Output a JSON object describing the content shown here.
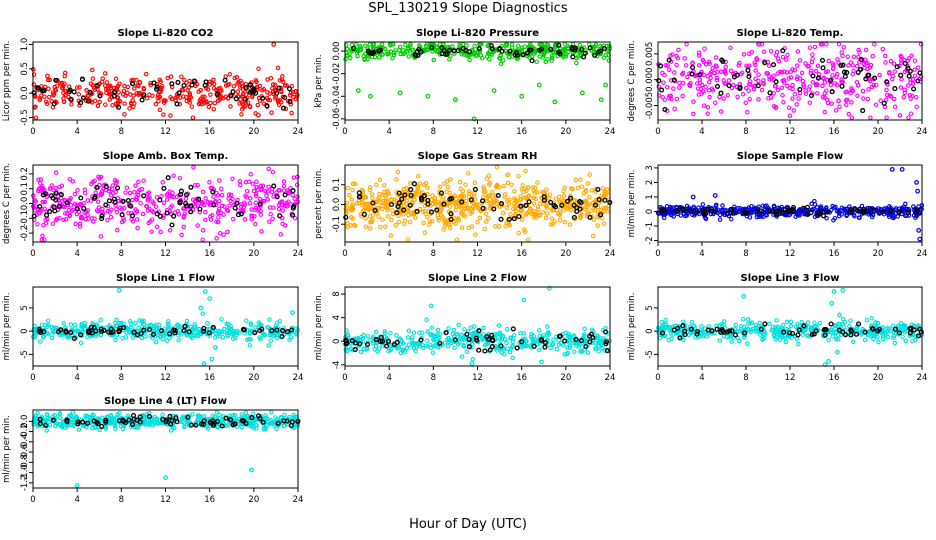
{
  "figure": {
    "title": "SPL_130219  Slope Diagnostics",
    "xlabel": "Hour of Day (UTC)"
  },
  "chart_data": [
    {
      "type": "scatter",
      "title": "Slope Li-820 CO2",
      "ylabel": "Licor ppm per min.",
      "color": "#ff0000",
      "xlim": [
        0,
        24
      ],
      "ylim": [
        -0.55,
        1.05
      ],
      "xticks": [
        0,
        4,
        8,
        12,
        16,
        20,
        24
      ],
      "yticks": [
        -0.5,
        0.0,
        0.5,
        1.0
      ],
      "ytick_labels": [
        "-0.5",
        "0.0",
        "0.5",
        "1.0"
      ],
      "series": [
        {
          "center": 0.0,
          "spread": 0.18,
          "n": 380
        },
        {
          "center": 0.0,
          "spread": 0.12,
          "n": 60,
          "black": true
        }
      ],
      "outliers": [
        {
          "x": 21.8,
          "y": 1.0
        },
        {
          "x": 20.4,
          "y": -0.45
        },
        {
          "x": 1.3,
          "y": 0.35
        }
      ]
    },
    {
      "type": "scatter",
      "title": "Slope Li-820 Pressure",
      "ylabel": "kPa per min.",
      "color": "#00cc00",
      "xlim": [
        0,
        24
      ],
      "ylim": [
        -0.061,
        0.008
      ],
      "xticks": [
        0,
        4,
        8,
        12,
        16,
        20,
        24
      ],
      "yticks": [
        -0.06,
        -0.04,
        -0.02,
        0.0
      ],
      "ytick_labels": [
        "-0.06",
        "-0.04",
        "-0.02",
        "0.00"
      ],
      "series": [
        {
          "center": 0.0,
          "spread": 0.004,
          "n": 380
        },
        {
          "center": 0.0,
          "spread": 0.003,
          "n": 60,
          "black": true
        }
      ],
      "outliers": [
        {
          "x": 1.2,
          "y": -0.035
        },
        {
          "x": 2.3,
          "y": -0.04
        },
        {
          "x": 5.0,
          "y": -0.037
        },
        {
          "x": 7.5,
          "y": -0.04
        },
        {
          "x": 10.0,
          "y": -0.043
        },
        {
          "x": 11.7,
          "y": -0.06
        },
        {
          "x": 13.5,
          "y": -0.035
        },
        {
          "x": 16.0,
          "y": -0.04
        },
        {
          "x": 17.6,
          "y": -0.03
        },
        {
          "x": 19.0,
          "y": -0.045
        },
        {
          "x": 21.5,
          "y": -0.037
        },
        {
          "x": 23.2,
          "y": -0.043
        },
        {
          "x": 23.6,
          "y": -0.03
        }
      ]
    },
    {
      "type": "scatter",
      "title": "Slope Li-820 Temp.",
      "ylabel": "degrees C per min.",
      "color": "#ff00ff",
      "xlim": [
        0,
        24
      ],
      "ylim": [
        -0.0078,
        0.0073
      ],
      "xticks": [
        0,
        4,
        8,
        12,
        16,
        20,
        24
      ],
      "yticks": [
        -0.005,
        0.0,
        0.005
      ],
      "ytick_labels": [
        "-0.005",
        "0.000",
        "0.005"
      ],
      "series": [
        {
          "center": 0.0,
          "spread": 0.0033,
          "n": 420
        },
        {
          "center": 0.0,
          "spread": 0.0025,
          "n": 60,
          "black": true
        }
      ],
      "outliers": []
    },
    {
      "type": "scatter",
      "title": "Slope Amb. Box Temp.",
      "ylabel": "degrees C per min.",
      "color": "#ff00ff",
      "xlim": [
        0,
        24
      ],
      "ylim": [
        -0.26,
        0.26
      ],
      "xticks": [
        0,
        4,
        8,
        12,
        16,
        20,
        24
      ],
      "yticks": [
        -0.2,
        -0.1,
        0.0,
        0.1,
        0.2
      ],
      "ytick_labels": [
        "-0.2",
        "-0.1",
        "0.0",
        "0.1",
        "0.2"
      ],
      "series": [
        {
          "center": 0.0,
          "spread": 0.09,
          "n": 450
        },
        {
          "center": 0.0,
          "spread": 0.07,
          "n": 70,
          "black": true
        }
      ],
      "outliers": []
    },
    {
      "type": "scatter",
      "title": "Slope Gas Stream RH",
      "ylabel": "percent per min.",
      "color": "#ffaa00",
      "xlim": [
        0,
        24
      ],
      "ylim": [
        -0.19,
        0.2
      ],
      "xticks": [
        0,
        4,
        8,
        12,
        16,
        20,
        24
      ],
      "yticks": [
        -0.1,
        0.0,
        0.1
      ],
      "ytick_labels": [
        "-0.1",
        "0.0",
        "0.1"
      ],
      "series": [
        {
          "center": 0.0,
          "spread": 0.06,
          "n": 650
        },
        {
          "center": 0.0,
          "spread": 0.05,
          "n": 70,
          "black": true
        }
      ],
      "outliers": []
    },
    {
      "type": "scatter",
      "title": "Slope Sample Flow",
      "ylabel": "ml/min per min.",
      "color": "#0000dd",
      "xlim": [
        0,
        24
      ],
      "ylim": [
        -2.1,
        3.2
      ],
      "xticks": [
        0,
        4,
        8,
        12,
        16,
        20,
        24
      ],
      "yticks": [
        -2,
        -1,
        0,
        1,
        2,
        3
      ],
      "ytick_labels": [
        "-2",
        "-1",
        "0",
        "1",
        "2",
        "3"
      ],
      "series": [
        {
          "center": 0.0,
          "spread": 0.2,
          "n": 450
        },
        {
          "center": 0.0,
          "spread": 0.12,
          "n": 60,
          "black": true
        }
      ],
      "outliers": [
        {
          "x": 21.3,
          "y": 2.9
        },
        {
          "x": 22.2,
          "y": 2.9
        },
        {
          "x": 23.5,
          "y": 2.0
        },
        {
          "x": 23.6,
          "y": 1.4
        },
        {
          "x": 23.8,
          "y": -1.9
        },
        {
          "x": 23.7,
          "y": -1.3
        },
        {
          "x": 3.2,
          "y": 1.0
        },
        {
          "x": 5.2,
          "y": 1.1
        }
      ]
    },
    {
      "type": "scatter",
      "title": "Slope Line 1 Flow",
      "ylabel": "ml/min per min.",
      "color": "#00e0e0",
      "xlim": [
        0,
        24
      ],
      "ylim": [
        -7.5,
        9.5
      ],
      "xticks": [
        0,
        4,
        8,
        12,
        16,
        20,
        24
      ],
      "yticks": [
        -5,
        0,
        5
      ],
      "ytick_labels": [
        "-5",
        "0",
        "5"
      ],
      "series": [
        {
          "center": 0.0,
          "spread": 1.0,
          "n": 420
        },
        {
          "center": 0.0,
          "spread": 0.5,
          "n": 60,
          "black": true
        }
      ],
      "outliers": [
        {
          "x": 7.8,
          "y": 8.8
        },
        {
          "x": 15.6,
          "y": 8.5
        },
        {
          "x": 16.0,
          "y": 7.0
        },
        {
          "x": 16.2,
          "y": -6.0
        },
        {
          "x": 15.5,
          "y": -7.0
        },
        {
          "x": 15.2,
          "y": 5.0
        },
        {
          "x": 16.5,
          "y": -3.5
        },
        {
          "x": 23.5,
          "y": 4.0
        }
      ]
    },
    {
      "type": "scatter",
      "title": "Slope Line 2 Flow",
      "ylabel": "ml/min per min.",
      "color": "#00e0e0",
      "xlim": [
        0,
        24
      ],
      "ylim": [
        -4.2,
        9.2
      ],
      "xticks": [
        0,
        4,
        8,
        12,
        16,
        20,
        24
      ],
      "yticks": [
        -4,
        0,
        4,
        8
      ],
      "ytick_labels": [
        "-4",
        "0",
        "4",
        "8"
      ],
      "series": [
        {
          "center": 0.0,
          "spread": 1.1,
          "n": 420
        },
        {
          "center": 0.0,
          "spread": 0.7,
          "n": 60,
          "black": true
        }
      ],
      "outliers": [
        {
          "x": 7.8,
          "y": 6.0
        },
        {
          "x": 16.2,
          "y": 7.0
        },
        {
          "x": 18.5,
          "y": 9.0
        },
        {
          "x": 11.5,
          "y": -3.8
        },
        {
          "x": 17.8,
          "y": -3.5
        }
      ]
    },
    {
      "type": "scatter",
      "title": "Slope Line 3 Flow",
      "ylabel": "ml/min per min.",
      "color": "#00e0e0",
      "xlim": [
        0,
        24
      ],
      "ylim": [
        -7.5,
        9.5
      ],
      "xticks": [
        0,
        4,
        8,
        12,
        16,
        20,
        24
      ],
      "yticks": [
        -5,
        0,
        5
      ],
      "ytick_labels": [
        "-5",
        "0",
        "5"
      ],
      "series": [
        {
          "center": 0.0,
          "spread": 1.0,
          "n": 420
        },
        {
          "center": 0.0,
          "spread": 0.6,
          "n": 60,
          "black": true
        }
      ],
      "outliers": [
        {
          "x": 7.8,
          "y": 7.5
        },
        {
          "x": 16.0,
          "y": 8.5
        },
        {
          "x": 16.8,
          "y": 8.8
        },
        {
          "x": 15.8,
          "y": 6.0
        },
        {
          "x": 15.5,
          "y": -6.5
        },
        {
          "x": 16.3,
          "y": -4.5
        },
        {
          "x": 15.2,
          "y": -7.2
        },
        {
          "x": 16.5,
          "y": 3.5
        }
      ]
    },
    {
      "type": "scatter",
      "title": "Slope Line 4 (LT) Flow",
      "ylabel": "ml/min per min.",
      "color": "#00e0e0",
      "xlim": [
        0,
        24
      ],
      "ylim": [
        -1.3,
        0.22
      ],
      "xticks": [
        0,
        4,
        8,
        12,
        16,
        20,
        24
      ],
      "yticks": [
        -1.2,
        -1.0,
        -0.8,
        -0.6,
        -0.4,
        -0.2,
        0.0
      ],
      "ytick_labels": [
        "-1.2",
        "-1.0",
        "-0.8",
        "-0.6",
        "-0.4",
        "-0.2",
        "0.0"
      ],
      "series": [
        {
          "center": 0.0,
          "spread": 0.07,
          "n": 500
        },
        {
          "center": 0.0,
          "spread": 0.05,
          "n": 70,
          "black": true
        }
      ],
      "outliers": [
        {
          "x": 4.0,
          "y": -1.25
        },
        {
          "x": 12.0,
          "y": -1.1
        },
        {
          "x": 19.8,
          "y": -0.95
        }
      ]
    }
  ]
}
